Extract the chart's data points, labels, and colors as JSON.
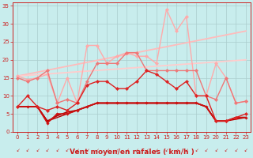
{
  "bg_color": "#c8eded",
  "grid_color": "#aacccc",
  "xlabel": "Vent moyen/en rafales ( km/h )",
  "xlim": [
    -0.5,
    23.5
  ],
  "ylim": [
    0,
    36
  ],
  "yticks": [
    0,
    5,
    10,
    15,
    20,
    25,
    30,
    35
  ],
  "xticks": [
    0,
    1,
    2,
    3,
    4,
    5,
    6,
    7,
    8,
    9,
    10,
    11,
    12,
    13,
    14,
    15,
    16,
    17,
    18,
    19,
    20,
    21,
    22,
    23
  ],
  "lines": [
    {
      "comment": "dark red line with markers - lower cluster",
      "x": [
        0,
        1,
        2,
        3,
        4,
        5,
        6,
        7,
        8,
        9,
        10,
        11,
        12,
        13,
        14,
        15,
        16,
        17,
        18,
        19,
        20,
        21,
        22,
        23
      ],
      "y": [
        7,
        10,
        7,
        6,
        7,
        6,
        8,
        13,
        14,
        14,
        12,
        12,
        14,
        17,
        16,
        14,
        12,
        14,
        10,
        10,
        3,
        3,
        4,
        5
      ],
      "color": "#dd2222",
      "lw": 1.0,
      "marker": "D",
      "ms": 2.2,
      "alpha": 1.0,
      "zorder": 5
    },
    {
      "comment": "dark red flat-ish line with markers",
      "x": [
        0,
        1,
        2,
        3,
        4,
        5,
        6,
        7,
        8,
        9,
        10,
        11,
        12,
        13,
        14,
        15,
        16,
        17,
        18,
        19,
        20,
        21,
        22,
        23
      ],
      "y": [
        7,
        7,
        7,
        2.5,
        5,
        5,
        6,
        7,
        8,
        8,
        8,
        8,
        8,
        8,
        8,
        8,
        8,
        8,
        8,
        7,
        3,
        3,
        4,
        4
      ],
      "color": "#cc1111",
      "lw": 1.3,
      "marker": "D",
      "ms": 1.8,
      "alpha": 1.0,
      "zorder": 4
    },
    {
      "comment": "very dark red - near flat",
      "x": [
        0,
        1,
        2,
        3,
        4,
        5,
        6,
        7,
        8,
        9,
        10,
        11,
        12,
        13,
        14,
        15,
        16,
        17,
        18,
        19,
        20,
        21,
        22,
        23
      ],
      "y": [
        7,
        7,
        7,
        3,
        4.5,
        5.5,
        6,
        7,
        8,
        8,
        8,
        8,
        8,
        8,
        8,
        8,
        8,
        8,
        8,
        7,
        3,
        3,
        4,
        4
      ],
      "color": "#aa0000",
      "lw": 1.2,
      "marker": null,
      "ms": 0,
      "alpha": 1.0,
      "zorder": 3
    },
    {
      "comment": "dark red - near flat line 2",
      "x": [
        0,
        1,
        2,
        3,
        4,
        5,
        6,
        7,
        8,
        9,
        10,
        11,
        12,
        13,
        14,
        15,
        16,
        17,
        18,
        19,
        20,
        21,
        22,
        23
      ],
      "y": [
        7,
        7,
        7,
        3,
        4,
        5,
        6,
        7,
        8,
        8,
        8,
        8,
        8,
        8,
        8,
        8,
        8,
        8,
        8,
        7,
        3,
        3,
        3.5,
        4
      ],
      "color": "#bb0000",
      "lw": 1.0,
      "marker": null,
      "ms": 0,
      "alpha": 1.0,
      "zorder": 3
    },
    {
      "comment": "medium pink line with markers - medium cluster",
      "x": [
        0,
        1,
        2,
        3,
        4,
        5,
        6,
        7,
        8,
        9,
        10,
        11,
        12,
        13,
        14,
        15,
        16,
        17,
        18,
        19,
        20,
        21,
        22,
        23
      ],
      "y": [
        15,
        14,
        15,
        17,
        8,
        9,
        8,
        14,
        19,
        19,
        19,
        22,
        22,
        17,
        17,
        17,
        17,
        17,
        17,
        10,
        9,
        15,
        8,
        8.5
      ],
      "color": "#ee7777",
      "lw": 1.0,
      "marker": "D",
      "ms": 2.2,
      "alpha": 1.0,
      "zorder": 4
    },
    {
      "comment": "light pink line with markers - upper jagged",
      "x": [
        0,
        1,
        2,
        3,
        4,
        5,
        6,
        7,
        8,
        9,
        10,
        11,
        12,
        13,
        14,
        15,
        16,
        17,
        18,
        19,
        20,
        21,
        22,
        23
      ],
      "y": [
        15.5,
        14.5,
        15,
        16,
        8,
        15,
        8,
        24,
        24,
        19,
        21,
        22,
        21,
        21,
        19,
        34,
        28,
        32,
        10,
        10,
        19,
        15,
        8,
        8.5
      ],
      "color": "#ffaaaa",
      "lw": 1.0,
      "marker": "D",
      "ms": 2.2,
      "alpha": 1.0,
      "zorder": 3
    },
    {
      "comment": "diagonal trend line 1 - light pink no marker",
      "x": [
        0,
        23
      ],
      "y": [
        15.5,
        28
      ],
      "color": "#ffbbbb",
      "lw": 1.3,
      "marker": null,
      "ms": 0,
      "alpha": 1.0,
      "zorder": 2
    },
    {
      "comment": "diagonal trend line 2 - light pink no marker lower",
      "x": [
        0,
        23
      ],
      "y": [
        15.5,
        20
      ],
      "color": "#ffcccc",
      "lw": 1.3,
      "marker": null,
      "ms": 0,
      "alpha": 1.0,
      "zorder": 2
    }
  ],
  "arrow_color": "#cc2020",
  "tick_label_color": "#cc2020",
  "xlabel_color": "#cc2020",
  "xlabel_fontsize": 6.5,
  "tick_fontsize": 5.0
}
